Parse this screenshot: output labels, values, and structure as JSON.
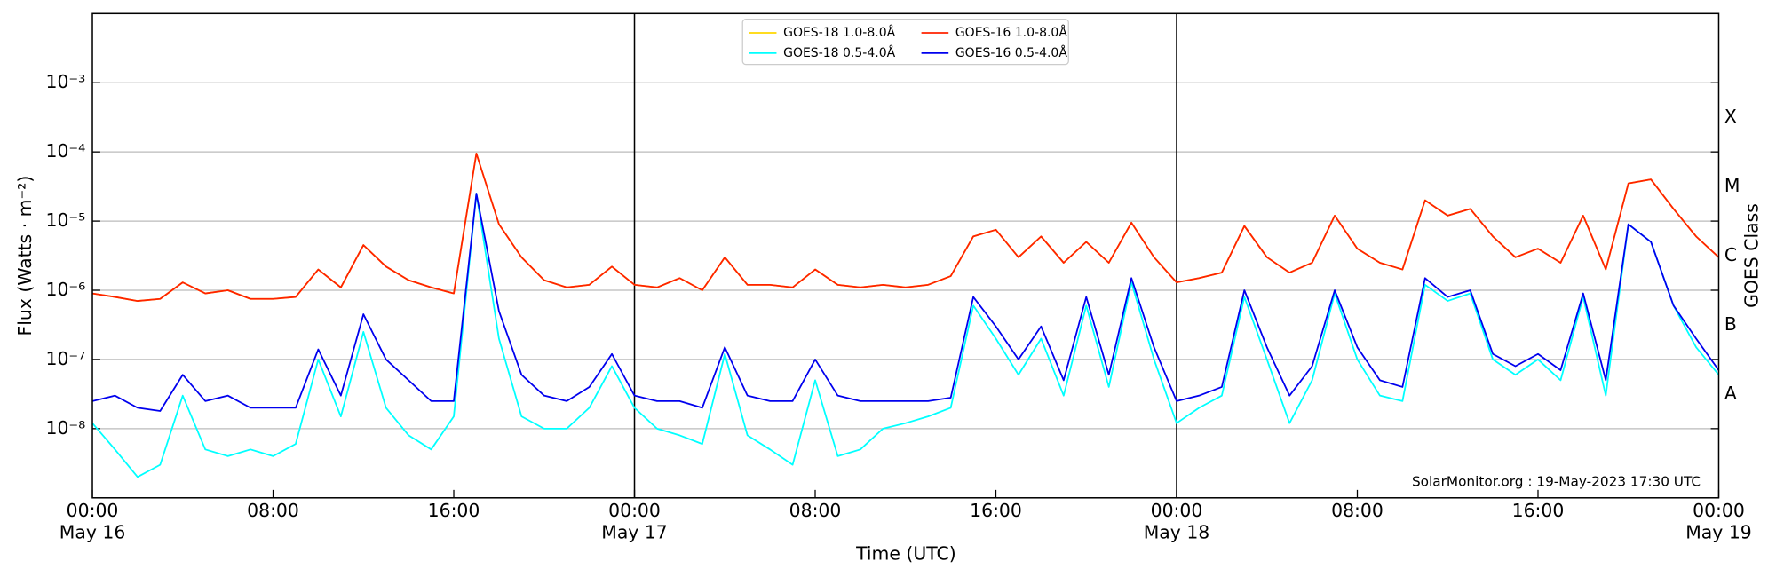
{
  "chart_data": {
    "type": "line",
    "log_y": true,
    "grid": true,
    "day_lines": true,
    "legend": "upper center",
    "xlabel": "Time (UTC)",
    "ylabel": "Flux (Watts · m⁻²)",
    "y2label": "GOES Class",
    "annotation": "SolarMonitor.org : 19-May-2023 17:30 UTC",
    "xlim": [
      "May 16 00:00",
      "May 19 00:00"
    ],
    "xticks": [
      {
        "value": "May 16 00:00",
        "label": [
          "00:00",
          "May 16"
        ]
      },
      {
        "value": "May 16 08:00",
        "label": "08:00"
      },
      {
        "value": "May 16 16:00",
        "label": "16:00"
      },
      {
        "value": "May 17 00:00",
        "label": [
          "00:00",
          "May 17"
        ]
      },
      {
        "value": "May 17 08:00",
        "label": "08:00"
      },
      {
        "value": "May 17 16:00",
        "label": "16:00"
      },
      {
        "value": "May 18 00:00",
        "label": [
          "00:00",
          "May 18"
        ]
      },
      {
        "value": "May 18 08:00",
        "label": "08:00"
      },
      {
        "value": "May 18 16:00",
        "label": "16:00"
      },
      {
        "value": "May 19 00:00",
        "label": [
          "00:00",
          "May 19"
        ]
      }
    ],
    "ylim": [
      1e-09,
      0.01
    ],
    "yticks": [
      {
        "value": 1e-08,
        "label": "10⁻⁸"
      },
      {
        "value": 1e-07,
        "label": "10⁻⁷"
      },
      {
        "value": 1e-06,
        "label": "10⁻⁶"
      },
      {
        "value": 1e-05,
        "label": "10⁻⁵"
      },
      {
        "value": 0.0001,
        "label": "10⁻⁴"
      },
      {
        "value": 0.001,
        "label": "10⁻³"
      }
    ],
    "classes": [
      {
        "value": 1e-08,
        "label": "A"
      },
      {
        "value": 1e-07,
        "label": "B"
      },
      {
        "value": 1e-06,
        "label": "C"
      },
      {
        "value": 1e-05,
        "label": "M"
      },
      {
        "value": 0.0001,
        "label": "X"
      }
    ],
    "x": [
      "May 16 00:00",
      "May 16 01:00",
      "May 16 02:00",
      "May 16 03:00",
      "May 16 04:00",
      "May 16 05:00",
      "May 16 06:00",
      "May 16 07:00",
      "May 16 08:00",
      "May 16 09:00",
      "May 16 10:00",
      "May 16 11:00",
      "May 16 12:00",
      "May 16 13:00",
      "May 16 14:00",
      "May 16 15:00",
      "May 16 16:00",
      "May 16 17:00",
      "May 16 18:00",
      "May 16 19:00",
      "May 16 20:00",
      "May 16 21:00",
      "May 16 22:00",
      "May 16 23:00",
      "May 17 00:00",
      "May 17 01:00",
      "May 17 02:00",
      "May 17 03:00",
      "May 17 04:00",
      "May 17 05:00",
      "May 17 06:00",
      "May 17 07:00",
      "May 17 08:00",
      "May 17 09:00",
      "May 17 10:00",
      "May 17 11:00",
      "May 17 12:00",
      "May 17 13:00",
      "May 17 14:00",
      "May 17 15:00",
      "May 17 16:00",
      "May 17 17:00",
      "May 17 18:00",
      "May 17 19:00",
      "May 17 20:00",
      "May 17 21:00",
      "May 17 22:00",
      "May 17 23:00",
      "May 18 00:00",
      "May 18 01:00",
      "May 18 02:00",
      "May 18 03:00",
      "May 18 04:00",
      "May 18 05:00",
      "May 18 06:00",
      "May 18 07:00",
      "May 18 08:00",
      "May 18 09:00",
      "May 18 10:00",
      "May 18 11:00",
      "May 18 12:00",
      "May 18 13:00",
      "May 18 14:00",
      "May 18 15:00",
      "May 18 16:00",
      "May 18 17:00",
      "May 18 18:00",
      "May 18 19:00",
      "May 18 20:00",
      "May 18 21:00",
      "May 18 22:00",
      "May 18 23:00",
      "May 19 00:00"
    ],
    "series": [
      {
        "name": "GOES-18 1.0-8.0Å",
        "color": "#ffd700",
        "values": [
          9e-07,
          8e-07,
          7e-07,
          7.5e-07,
          1.3e-06,
          9e-07,
          1e-06,
          7.5e-07,
          7.5e-07,
          8e-07,
          2e-06,
          1.1e-06,
          4.5e-06,
          2.2e-06,
          1.4e-06,
          1.1e-06,
          9e-07,
          9.5e-05,
          9e-06,
          3e-06,
          1.4e-06,
          1.1e-06,
          1.2e-06,
          2.2e-06,
          1.2e-06,
          1.1e-06,
          1.5e-06,
          1e-06,
          3e-06,
          1.2e-06,
          1.2e-06,
          1.1e-06,
          2e-06,
          1.2e-06,
          1.1e-06,
          1.2e-06,
          1.1e-06,
          1.2e-06,
          1.6e-06,
          6e-06,
          7.5e-06,
          3e-06,
          6e-06,
          2.5e-06,
          5e-06,
          2.5e-06,
          9.5e-06,
          3e-06,
          1.3e-06,
          1.5e-06,
          1.8e-06,
          8.5e-06,
          3e-06,
          1.8e-06,
          2.5e-06,
          1.2e-05,
          4e-06,
          2.5e-06,
          2e-06,
          2e-05,
          1.2e-05,
          1.5e-05,
          6e-06,
          3e-06,
          4e-06,
          2.5e-06,
          1.2e-05,
          2e-06,
          3.5e-05,
          4e-05,
          1.5e-05,
          6e-06,
          3e-06
        ]
      },
      {
        "name": "GOES-18 0.5-4.0Å",
        "color": "#00ffff",
        "values": [
          1.2e-08,
          5e-09,
          2e-09,
          3e-09,
          3e-08,
          5e-09,
          4e-09,
          5e-09,
          4e-09,
          6e-09,
          1e-07,
          1.5e-08,
          2.5e-07,
          2e-08,
          8e-09,
          5e-09,
          1.5e-08,
          2.5e-05,
          2e-07,
          1.5e-08,
          1e-08,
          1e-08,
          2e-08,
          8e-08,
          2e-08,
          1e-08,
          8e-09,
          6e-09,
          1.2e-07,
          8e-09,
          5e-09,
          3e-09,
          5e-08,
          4e-09,
          5e-09,
          1e-08,
          1.2e-08,
          1.5e-08,
          2e-08,
          6e-07,
          2e-07,
          6e-08,
          2e-07,
          3e-08,
          6e-07,
          4e-08,
          1.3e-06,
          1e-07,
          1.2e-08,
          2e-08,
          3e-08,
          8e-07,
          1e-07,
          1.2e-08,
          5e-08,
          9e-07,
          1e-07,
          3e-08,
          2.5e-08,
          1.2e-06,
          7e-07,
          9e-07,
          1e-07,
          6e-08,
          1e-07,
          5e-08,
          8e-07,
          3e-08,
          9e-06,
          5e-06,
          6e-07,
          1.5e-07,
          6e-08
        ]
      },
      {
        "name": "GOES-16 1.0-8.0Å",
        "color": "#ff2200",
        "values": [
          9e-07,
          8e-07,
          7e-07,
          7.5e-07,
          1.3e-06,
          9e-07,
          1e-06,
          7.5e-07,
          7.5e-07,
          8e-07,
          2e-06,
          1.1e-06,
          4.5e-06,
          2.2e-06,
          1.4e-06,
          1.1e-06,
          9e-07,
          9.5e-05,
          9e-06,
          3e-06,
          1.4e-06,
          1.1e-06,
          1.2e-06,
          2.2e-06,
          1.2e-06,
          1.1e-06,
          1.5e-06,
          1e-06,
          3e-06,
          1.2e-06,
          1.2e-06,
          1.1e-06,
          2e-06,
          1.2e-06,
          1.1e-06,
          1.2e-06,
          1.1e-06,
          1.2e-06,
          1.6e-06,
          6e-06,
          7.5e-06,
          3e-06,
          6e-06,
          2.5e-06,
          5e-06,
          2.5e-06,
          9.5e-06,
          3e-06,
          1.3e-06,
          1.5e-06,
          1.8e-06,
          8.5e-06,
          3e-06,
          1.8e-06,
          2.5e-06,
          1.2e-05,
          4e-06,
          2.5e-06,
          2e-06,
          2e-05,
          1.2e-05,
          1.5e-05,
          6e-06,
          3e-06,
          4e-06,
          2.5e-06,
          1.2e-05,
          2e-06,
          3.5e-05,
          4e-05,
          1.5e-05,
          6e-06,
          3e-06
        ]
      },
      {
        "name": "GOES-16 0.5-4.0Å",
        "color": "#0000ee",
        "values": [
          2.5e-08,
          3e-08,
          2e-08,
          1.8e-08,
          6e-08,
          2.5e-08,
          3e-08,
          2e-08,
          2e-08,
          2e-08,
          1.4e-07,
          3e-08,
          4.5e-07,
          1e-07,
          5e-08,
          2.5e-08,
          2.5e-08,
          2.5e-05,
          5e-07,
          6e-08,
          3e-08,
          2.5e-08,
          4e-08,
          1.2e-07,
          3e-08,
          2.5e-08,
          2.5e-08,
          2e-08,
          1.5e-07,
          3e-08,
          2.5e-08,
          2.5e-08,
          1e-07,
          3e-08,
          2.5e-08,
          2.5e-08,
          2.5e-08,
          2.5e-08,
          2.8e-08,
          8e-07,
          3e-07,
          1e-07,
          3e-07,
          5e-08,
          8e-07,
          6e-08,
          1.5e-06,
          1.5e-07,
          2.5e-08,
          3e-08,
          4e-08,
          1e-06,
          1.5e-07,
          3e-08,
          8e-08,
          1e-06,
          1.5e-07,
          5e-08,
          4e-08,
          1.5e-06,
          8e-07,
          1e-06,
          1.2e-07,
          8e-08,
          1.2e-07,
          7e-08,
          9e-07,
          5e-08,
          9e-06,
          5e-06,
          6e-07,
          2e-07,
          7e-08
        ]
      }
    ]
  }
}
